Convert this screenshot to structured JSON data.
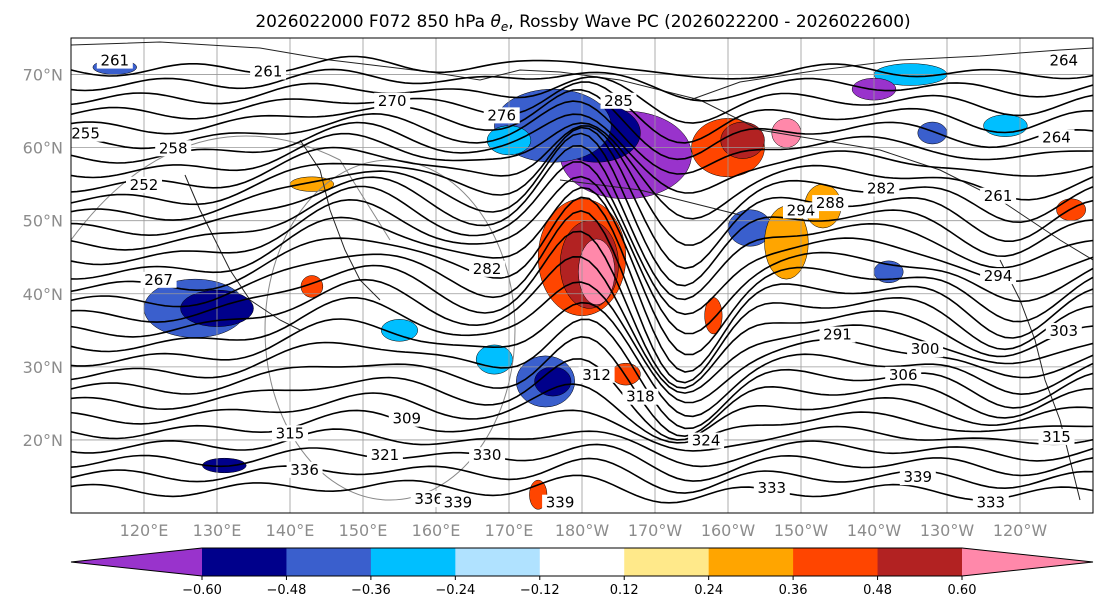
{
  "chart_data": {
    "type": "heatmap",
    "title": "2026022000 F072 850 hPa θe, Rossby Wave PC (2026022200 - 2026022600)",
    "title_main": "2026022000 F072 850 hPa ",
    "title_symbol": "θ",
    "title_sub": "e",
    "title_rest": ", Rossby Wave PC (2026022200 - 2026022600)",
    "lat_ticks": [
      "70°N",
      "60°N",
      "50°N",
      "40°N",
      "30°N",
      "20°N"
    ],
    "lat_values": [
      70,
      60,
      50,
      40,
      30,
      20
    ],
    "lon_ticks": [
      "120°E",
      "130°E",
      "140°E",
      "150°E",
      "160°E",
      "170°E",
      "180°W",
      "170°W",
      "160°W",
      "150°W",
      "140°W",
      "130°W",
      "120°W"
    ],
    "lon_values": [
      120,
      130,
      140,
      150,
      160,
      170,
      180,
      190,
      200,
      210,
      220,
      230,
      240
    ],
    "extent": {
      "lon": [
        110,
        250
      ],
      "lat": [
        10,
        75
      ]
    },
    "colorbar": {
      "colors": [
        "#9933cc",
        "#00008b",
        "#3a5fcd",
        "#00bfff",
        "#b0e2ff",
        "#ffffff",
        "#ffe98a",
        "#ffa500",
        "#ff4500",
        "#b22222",
        "#ff88aa"
      ],
      "levels": [
        -0.6,
        -0.48,
        -0.36,
        -0.24,
        -0.12,
        0.12,
        0.24,
        0.36,
        0.48,
        0.6
      ],
      "tick_labels": [
        "−0.60",
        "−0.48",
        "−0.36",
        "−0.24",
        "−0.12",
        "0.12",
        "0.24",
        "0.36",
        "0.48",
        "0.60"
      ],
      "extend": "both"
    },
    "contour_labels": [
      {
        "text": "261",
        "lon": 116,
        "lat": 71.5
      },
      {
        "text": "261",
        "lon": 137,
        "lat": 70
      },
      {
        "text": "270",
        "lon": 154,
        "lat": 66
      },
      {
        "text": "276",
        "lon": 169,
        "lat": 64
      },
      {
        "text": "285",
        "lon": 185,
        "lat": 66
      },
      {
        "text": "255",
        "lon": 112,
        "lat": 61.5
      },
      {
        "text": "258",
        "lon": 124,
        "lat": 59.5
      },
      {
        "text": "252",
        "lon": 120,
        "lat": 54.5
      },
      {
        "text": "267",
        "lon": 122,
        "lat": 41.5
      },
      {
        "text": "282",
        "lon": 167,
        "lat": 43
      },
      {
        "text": "294",
        "lon": 210,
        "lat": 51
      },
      {
        "text": "288",
        "lon": 214,
        "lat": 52
      },
      {
        "text": "282",
        "lon": 221,
        "lat": 54
      },
      {
        "text": "294",
        "lon": 237,
        "lat": 42
      },
      {
        "text": "291",
        "lon": 215,
        "lat": 34
      },
      {
        "text": "300",
        "lon": 227,
        "lat": 32
      },
      {
        "text": "306",
        "lon": 224,
        "lat": 28.5
      },
      {
        "text": "312",
        "lon": 182,
        "lat": 28.5
      },
      {
        "text": "318",
        "lon": 188,
        "lat": 25.5
      },
      {
        "text": "309",
        "lon": 156,
        "lat": 22.5
      },
      {
        "text": "315",
        "lon": 140,
        "lat": 20.5
      },
      {
        "text": "324",
        "lon": 197,
        "lat": 19.5
      },
      {
        "text": "330",
        "lon": 167,
        "lat": 17.5
      },
      {
        "text": "321",
        "lon": 153,
        "lat": 17.5
      },
      {
        "text": "336",
        "lon": 142,
        "lat": 15.5
      },
      {
        "text": "339",
        "lon": 226,
        "lat": 14.5
      },
      {
        "text": "333",
        "lon": 206,
        "lat": 13
      },
      {
        "text": "336",
        "lon": 159,
        "lat": 11.5
      },
      {
        "text": "339",
        "lon": 163,
        "lat": 11
      },
      {
        "text": "339",
        "lon": 177,
        "lat": 11
      },
      {
        "text": "264",
        "lon": 246,
        "lat": 71.5
      },
      {
        "text": "264",
        "lon": 245,
        "lat": 61
      },
      {
        "text": "261",
        "lon": 237,
        "lat": 53
      },
      {
        "text": "303",
        "lon": 246,
        "lat": 34.5
      },
      {
        "text": "315",
        "lon": 245,
        "lat": 20
      },
      {
        "text": "333",
        "lon": 236,
        "lat": 11
      }
    ],
    "anomaly_patches": [
      {
        "lon": 186,
        "lat": 59,
        "rx": 9,
        "ry": 6,
        "level": -0.6
      },
      {
        "lon": 182,
        "lat": 62,
        "rx": 6,
        "ry": 4,
        "level": -0.48
      },
      {
        "lon": 176,
        "lat": 63,
        "rx": 8,
        "ry": 5,
        "level": -0.36
      },
      {
        "lon": 170,
        "lat": 61,
        "rx": 3,
        "ry": 2,
        "level": -0.24
      },
      {
        "lon": 180,
        "lat": 45,
        "rx": 6,
        "ry": 8,
        "level": 0.36
      },
      {
        "lon": 181,
        "lat": 44,
        "rx": 4,
        "ry": 6,
        "level": 0.48
      },
      {
        "lon": 182,
        "lat": 43,
        "rx": 2.5,
        "ry": 4.5,
        "level": 0.6
      },
      {
        "lon": 200,
        "lat": 60,
        "rx": 5,
        "ry": 4,
        "level": 0.36
      },
      {
        "lon": 202,
        "lat": 61,
        "rx": 3,
        "ry": 2.5,
        "level": 0.48
      },
      {
        "lon": 208,
        "lat": 62,
        "rx": 2,
        "ry": 2,
        "level": 0.6
      },
      {
        "lon": 127,
        "lat": 38,
        "rx": 7,
        "ry": 4,
        "level": -0.36
      },
      {
        "lon": 130,
        "lat": 38,
        "rx": 5,
        "ry": 2.5,
        "level": -0.48
      },
      {
        "lon": 175,
        "lat": 28,
        "rx": 4,
        "ry": 3.5,
        "level": -0.36
      },
      {
        "lon": 176,
        "lat": 28,
        "rx": 2.5,
        "ry": 2,
        "level": -0.48
      },
      {
        "lon": 203,
        "lat": 49,
        "rx": 3,
        "ry": 2.5,
        "level": -0.36
      },
      {
        "lon": 208,
        "lat": 47,
        "rx": 3,
        "ry": 5,
        "level": 0.24
      },
      {
        "lon": 213,
        "lat": 52,
        "rx": 2.5,
        "ry": 3,
        "level": 0.24
      },
      {
        "lon": 222,
        "lat": 43,
        "rx": 2,
        "ry": 1.5,
        "level": -0.36
      },
      {
        "lon": 225,
        "lat": 70,
        "rx": 5,
        "ry": 1.5,
        "level": -0.24
      },
      {
        "lon": 220,
        "lat": 68,
        "rx": 3,
        "ry": 1.5,
        "level": -0.6
      },
      {
        "lon": 228,
        "lat": 62,
        "rx": 2,
        "ry": 1.5,
        "level": -0.36
      },
      {
        "lon": 238,
        "lat": 63,
        "rx": 3,
        "ry": 1.5,
        "level": -0.24
      },
      {
        "lon": 247,
        "lat": 51.5,
        "rx": 2,
        "ry": 1.5,
        "level": 0.36
      },
      {
        "lon": 155,
        "lat": 35,
        "rx": 2.5,
        "ry": 1.5,
        "level": -0.24
      },
      {
        "lon": 186,
        "lat": 29,
        "rx": 2,
        "ry": 1.5,
        "level": 0.36
      },
      {
        "lon": 198,
        "lat": 37,
        "rx": 1.2,
        "ry": 2.5,
        "level": 0.36
      },
      {
        "lon": 116,
        "lat": 71,
        "rx": 3,
        "ry": 1,
        "level": -0.36
      },
      {
        "lon": 174,
        "lat": 12.5,
        "rx": 1.2,
        "ry": 2,
        "level": 0.36
      },
      {
        "lon": 131,
        "lat": 16.5,
        "rx": 3,
        "ry": 1,
        "level": -0.48
      },
      {
        "lon": 143,
        "lat": 41,
        "rx": 1.5,
        "ry": 1.5,
        "level": 0.36
      },
      {
        "lon": 143,
        "lat": 55,
        "rx": 3,
        "ry": 1,
        "level": 0.24
      },
      {
        "lon": 168,
        "lat": 31,
        "rx": 2.5,
        "ry": 2,
        "level": -0.24
      }
    ]
  }
}
